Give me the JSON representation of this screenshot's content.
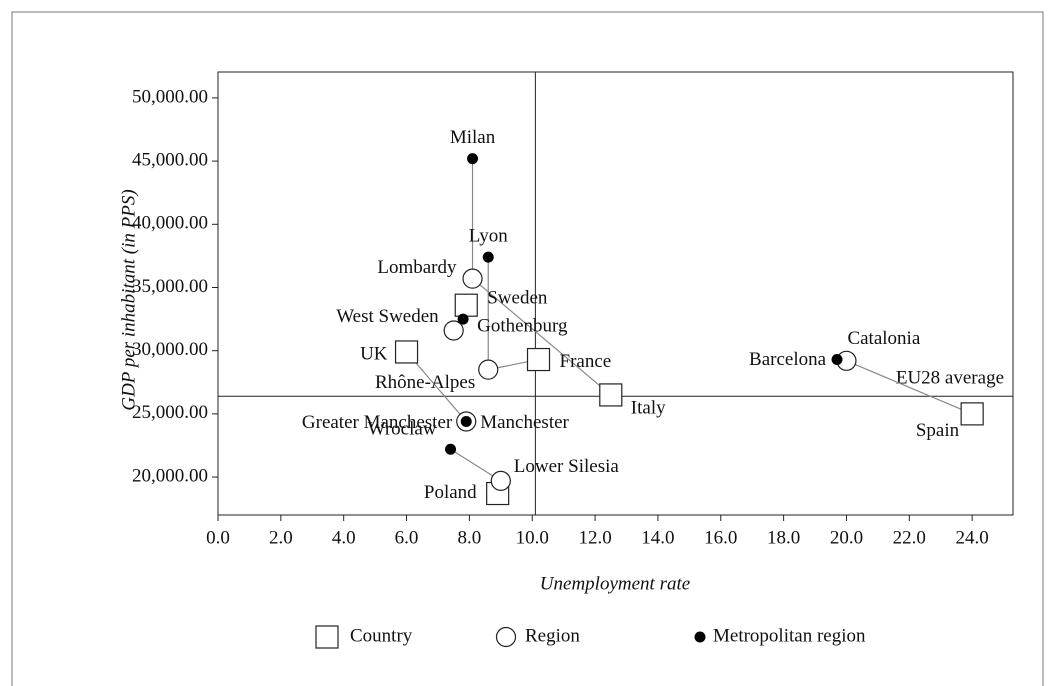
{
  "chart_data": {
    "type": "scatter",
    "x_label": "Unemployment rate",
    "y_label": "GDP per inhabitant (in PPS)",
    "xlim": [
      0,
      25.3
    ],
    "ylim": [
      17000,
      52050
    ],
    "xticks": [
      {
        "value": 0,
        "label": "0.0"
      },
      {
        "value": 2,
        "label": "2.0"
      },
      {
        "value": 4,
        "label": "4.0"
      },
      {
        "value": 6,
        "label": "6.0"
      },
      {
        "value": 8,
        "label": "8.0"
      },
      {
        "value": 10,
        "label": "10.0"
      },
      {
        "value": 12,
        "label": "12.0"
      },
      {
        "value": 14,
        "label": "14.0"
      },
      {
        "value": 16,
        "label": "16.0"
      },
      {
        "value": 18,
        "label": "18.0"
      },
      {
        "value": 20,
        "label": "20.0"
      },
      {
        "value": 22,
        "label": "22.0"
      },
      {
        "value": 24,
        "label": "24.0"
      }
    ],
    "yticks": [
      {
        "value": 20000,
        "label": "20,000.00"
      },
      {
        "value": 25000,
        "label": "25,000.00"
      },
      {
        "value": 30000,
        "label": "30,000.00"
      },
      {
        "value": 35000,
        "label": "35,000.00"
      },
      {
        "value": 40000,
        "label": "40,000.00"
      },
      {
        "value": 45000,
        "label": "45,000.00"
      },
      {
        "value": 50000,
        "label": "50,000.00"
      }
    ],
    "reference_x": 10.1,
    "reference_y": 26400,
    "reference_y_label": "EU28 average",
    "series": [
      {
        "name": "Country",
        "marker": "square",
        "labels": [
          "Italy",
          "France",
          "Sweden",
          "Spain",
          "UK",
          "Poland"
        ],
        "x": [
          12.5,
          10.2,
          7.9,
          24.0,
          6.0,
          8.9
        ],
        "values": [
          26500,
          29300,
          33600,
          25000,
          29900,
          18700
        ]
      },
      {
        "name": "Region",
        "marker": "circle",
        "labels": [
          "Lombardy",
          "Rhône-Alpes",
          "West Sweden",
          "Catalonia",
          "Greater Manchester",
          "Lower Silesia"
        ],
        "x": [
          8.1,
          8.6,
          7.5,
          20.0,
          7.9,
          9.0
        ],
        "values": [
          35700,
          28500,
          31600,
          29200,
          24400,
          19700
        ]
      },
      {
        "name": "Metropolitan region",
        "marker": "dot",
        "labels": [
          "Milan",
          "Lyon",
          "Gothenburg",
          "Barcelona",
          "Manchester",
          "Wroclaw"
        ],
        "x": [
          8.1,
          8.6,
          7.8,
          19.7,
          7.9,
          7.4
        ],
        "values": [
          45200,
          37400,
          32500,
          29300,
          24400,
          22200
        ]
      }
    ]
  }
}
